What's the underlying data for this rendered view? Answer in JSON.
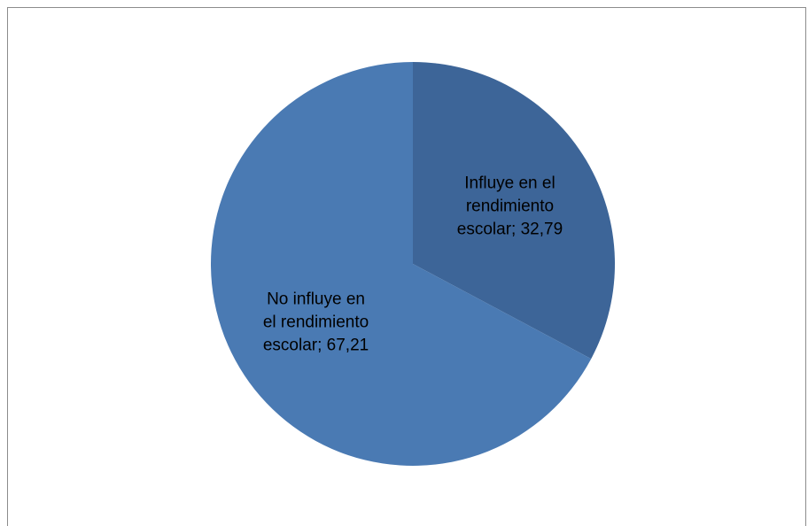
{
  "chart_data": {
    "type": "pie",
    "categories": [
      "Influye en el rendimiento escolar",
      "No influye en el rendimiento escolar"
    ],
    "values": [
      32.79,
      67.21
    ],
    "value_labels": [
      "Influye en el rendimiento escolar; 32,79",
      "No influye en el rendimiento escolar; 67,21"
    ],
    "colors": [
      "#3d6598",
      "#4a7ab3"
    ]
  }
}
